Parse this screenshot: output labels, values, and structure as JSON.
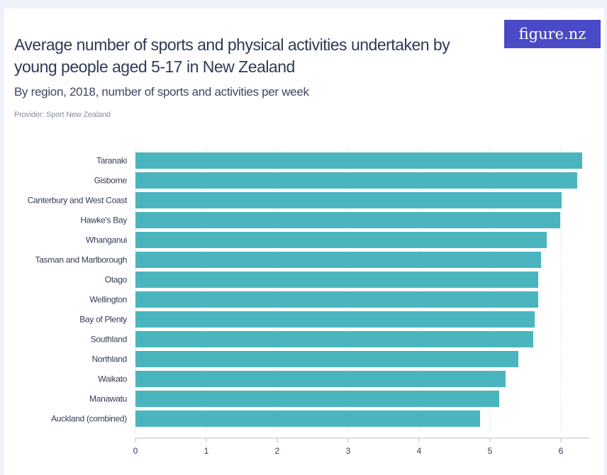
{
  "header": {
    "title": "Average number of sports and physical activities undertaken by young people aged 5-17 in New Zealand",
    "subtitle": "By region, 2018, number of sports and activities per week",
    "provider": "Provider: Sport New Zealand",
    "logo": "figure.nz"
  },
  "colors": {
    "bar": "#4ab5bf",
    "grid": "#d7dce6",
    "axis": "#b8bdc9",
    "text": "#333b52"
  },
  "chart_data": {
    "type": "bar",
    "orientation": "horizontal",
    "title": "Average number of sports and physical activities undertaken by young people aged 5-17 in New Zealand",
    "subtitle": "By region, 2018, number of sports and activities per week",
    "categories": [
      "Taranaki",
      "Gisborne",
      "Canterbury and West Coast",
      "Hawke's Bay",
      "Whanganui",
      "Tasman and Marlborough",
      "Otago",
      "Wellington",
      "Bay of Plenty",
      "Southland",
      "Northland",
      "Waikato",
      "Manawatu",
      "Auckland (combined)"
    ],
    "values": [
      6.3,
      6.23,
      6.01,
      5.99,
      5.8,
      5.72,
      5.68,
      5.68,
      5.63,
      5.61,
      5.4,
      5.22,
      5.13,
      4.86
    ],
    "xlim": [
      0,
      6.4
    ],
    "xticks": [
      0,
      1,
      2,
      3,
      4,
      5,
      6
    ],
    "grid": true,
    "legend": "none"
  }
}
